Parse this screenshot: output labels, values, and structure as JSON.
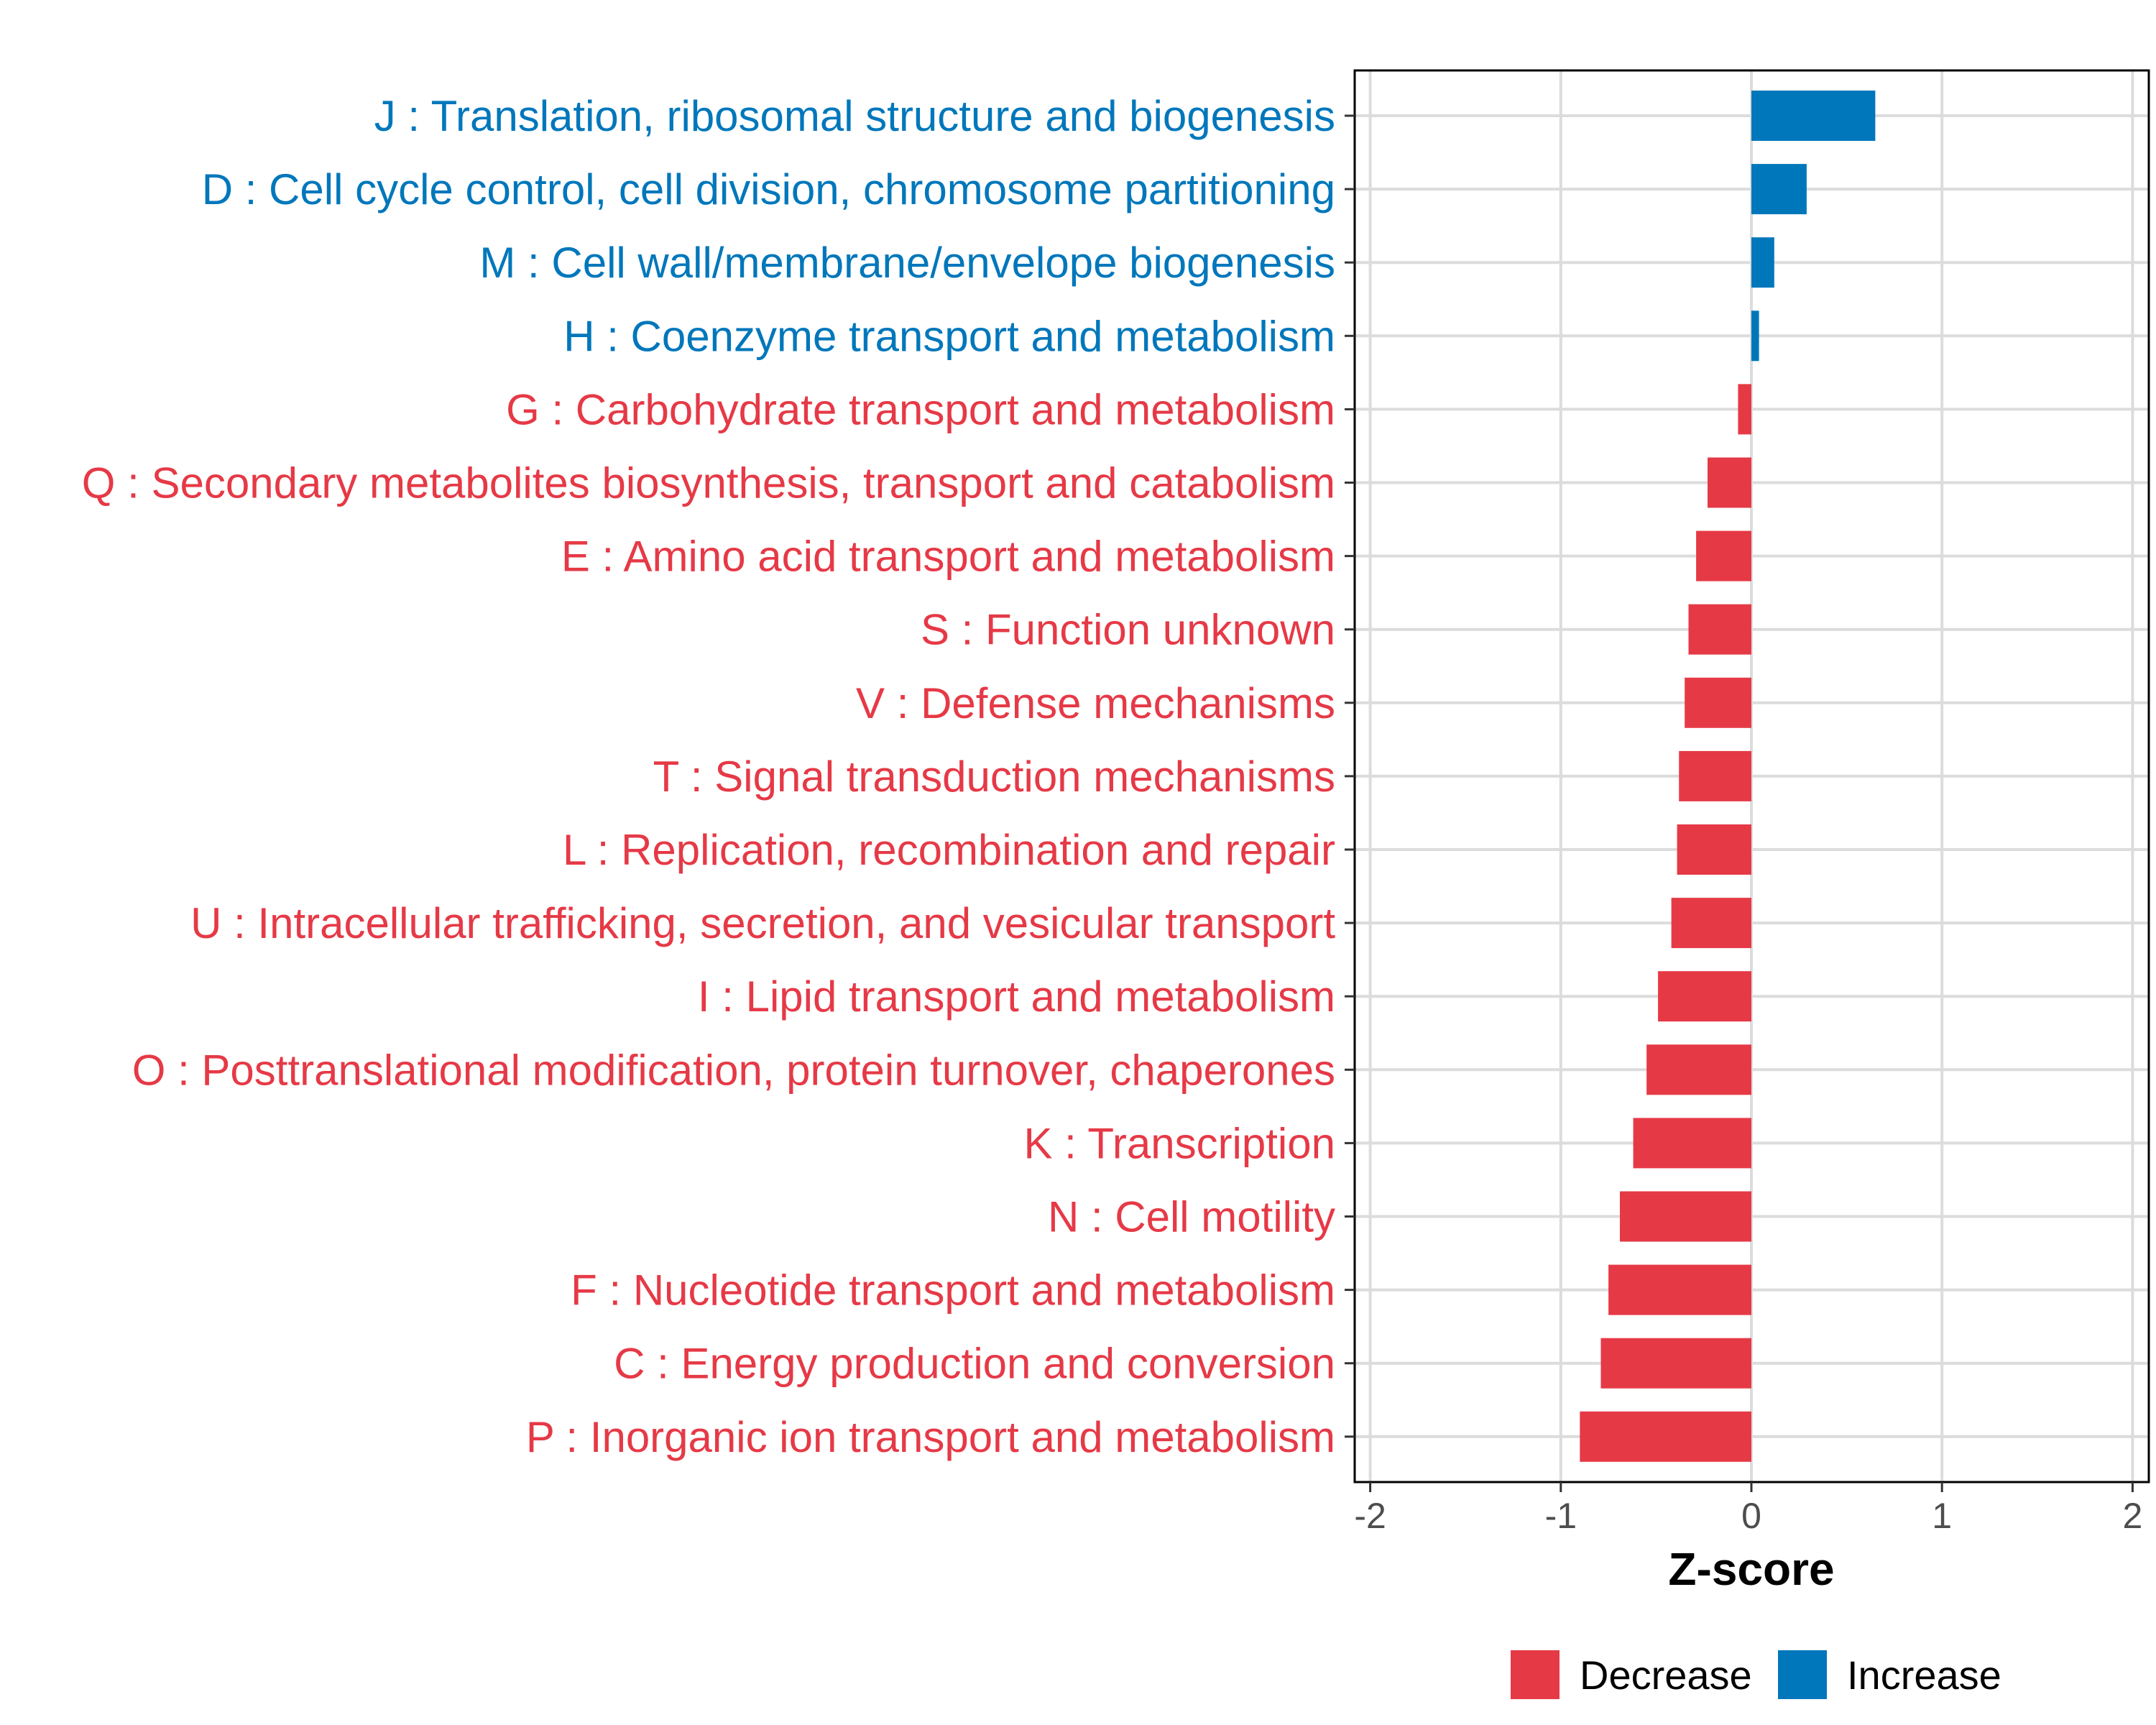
{
  "chart_data": {
    "type": "bar",
    "orientation": "horizontal",
    "title": "",
    "xlabel": "Z-score",
    "ylabel": "",
    "xlim": [
      -2.05,
      2.05
    ],
    "xticks": [
      -2,
      -1,
      0,
      1,
      2
    ],
    "xtick_labels": [
      "-2",
      "-1",
      "0",
      "1",
      "2"
    ],
    "grid": true,
    "legend_position": "bottom",
    "colors": {
      "Decrease": "#e63946",
      "Increase": "#0077bb"
    },
    "legend": [
      {
        "name": "Decrease",
        "label": "Decrease"
      },
      {
        "name": "Increase",
        "label": "Increase"
      }
    ],
    "categories": [
      "J : Translation, ribosomal structure and biogenesis",
      "D : Cell cycle control, cell division, chromosome partitioning",
      "M : Cell wall/membrane/envelope biogenesis",
      "H : Coenzyme transport and metabolism",
      "G : Carbohydrate transport and metabolism",
      "Q : Secondary metabolites biosynthesis, transport and catabolism",
      "E : Amino acid transport and metabolism",
      "S : Function unknown",
      "V : Defense mechanisms",
      "T : Signal transduction mechanisms",
      "L : Replication, recombination and repair",
      "U : Intracellular trafficking, secretion, and vesicular transport",
      "I : Lipid transport and metabolism",
      "O : Posttranslational modification, protein turnover, chaperones",
      "K : Transcription",
      "N : Cell motility",
      "F : Nucleotide transport and metabolism",
      "C : Energy production and conversion",
      "P : Inorganic ion transport and metabolism"
    ],
    "values": [
      0.65,
      0.29,
      0.12,
      0.04,
      -0.07,
      -0.23,
      -0.29,
      -0.33,
      -0.35,
      -0.38,
      -0.39,
      -0.42,
      -0.49,
      -0.55,
      -0.62,
      -0.69,
      -0.75,
      -0.79,
      -0.9
    ],
    "groups": [
      "Increase",
      "Increase",
      "Increase",
      "Increase",
      "Decrease",
      "Decrease",
      "Decrease",
      "Decrease",
      "Decrease",
      "Decrease",
      "Decrease",
      "Decrease",
      "Decrease",
      "Decrease",
      "Decrease",
      "Decrease",
      "Decrease",
      "Decrease",
      "Decrease"
    ]
  }
}
